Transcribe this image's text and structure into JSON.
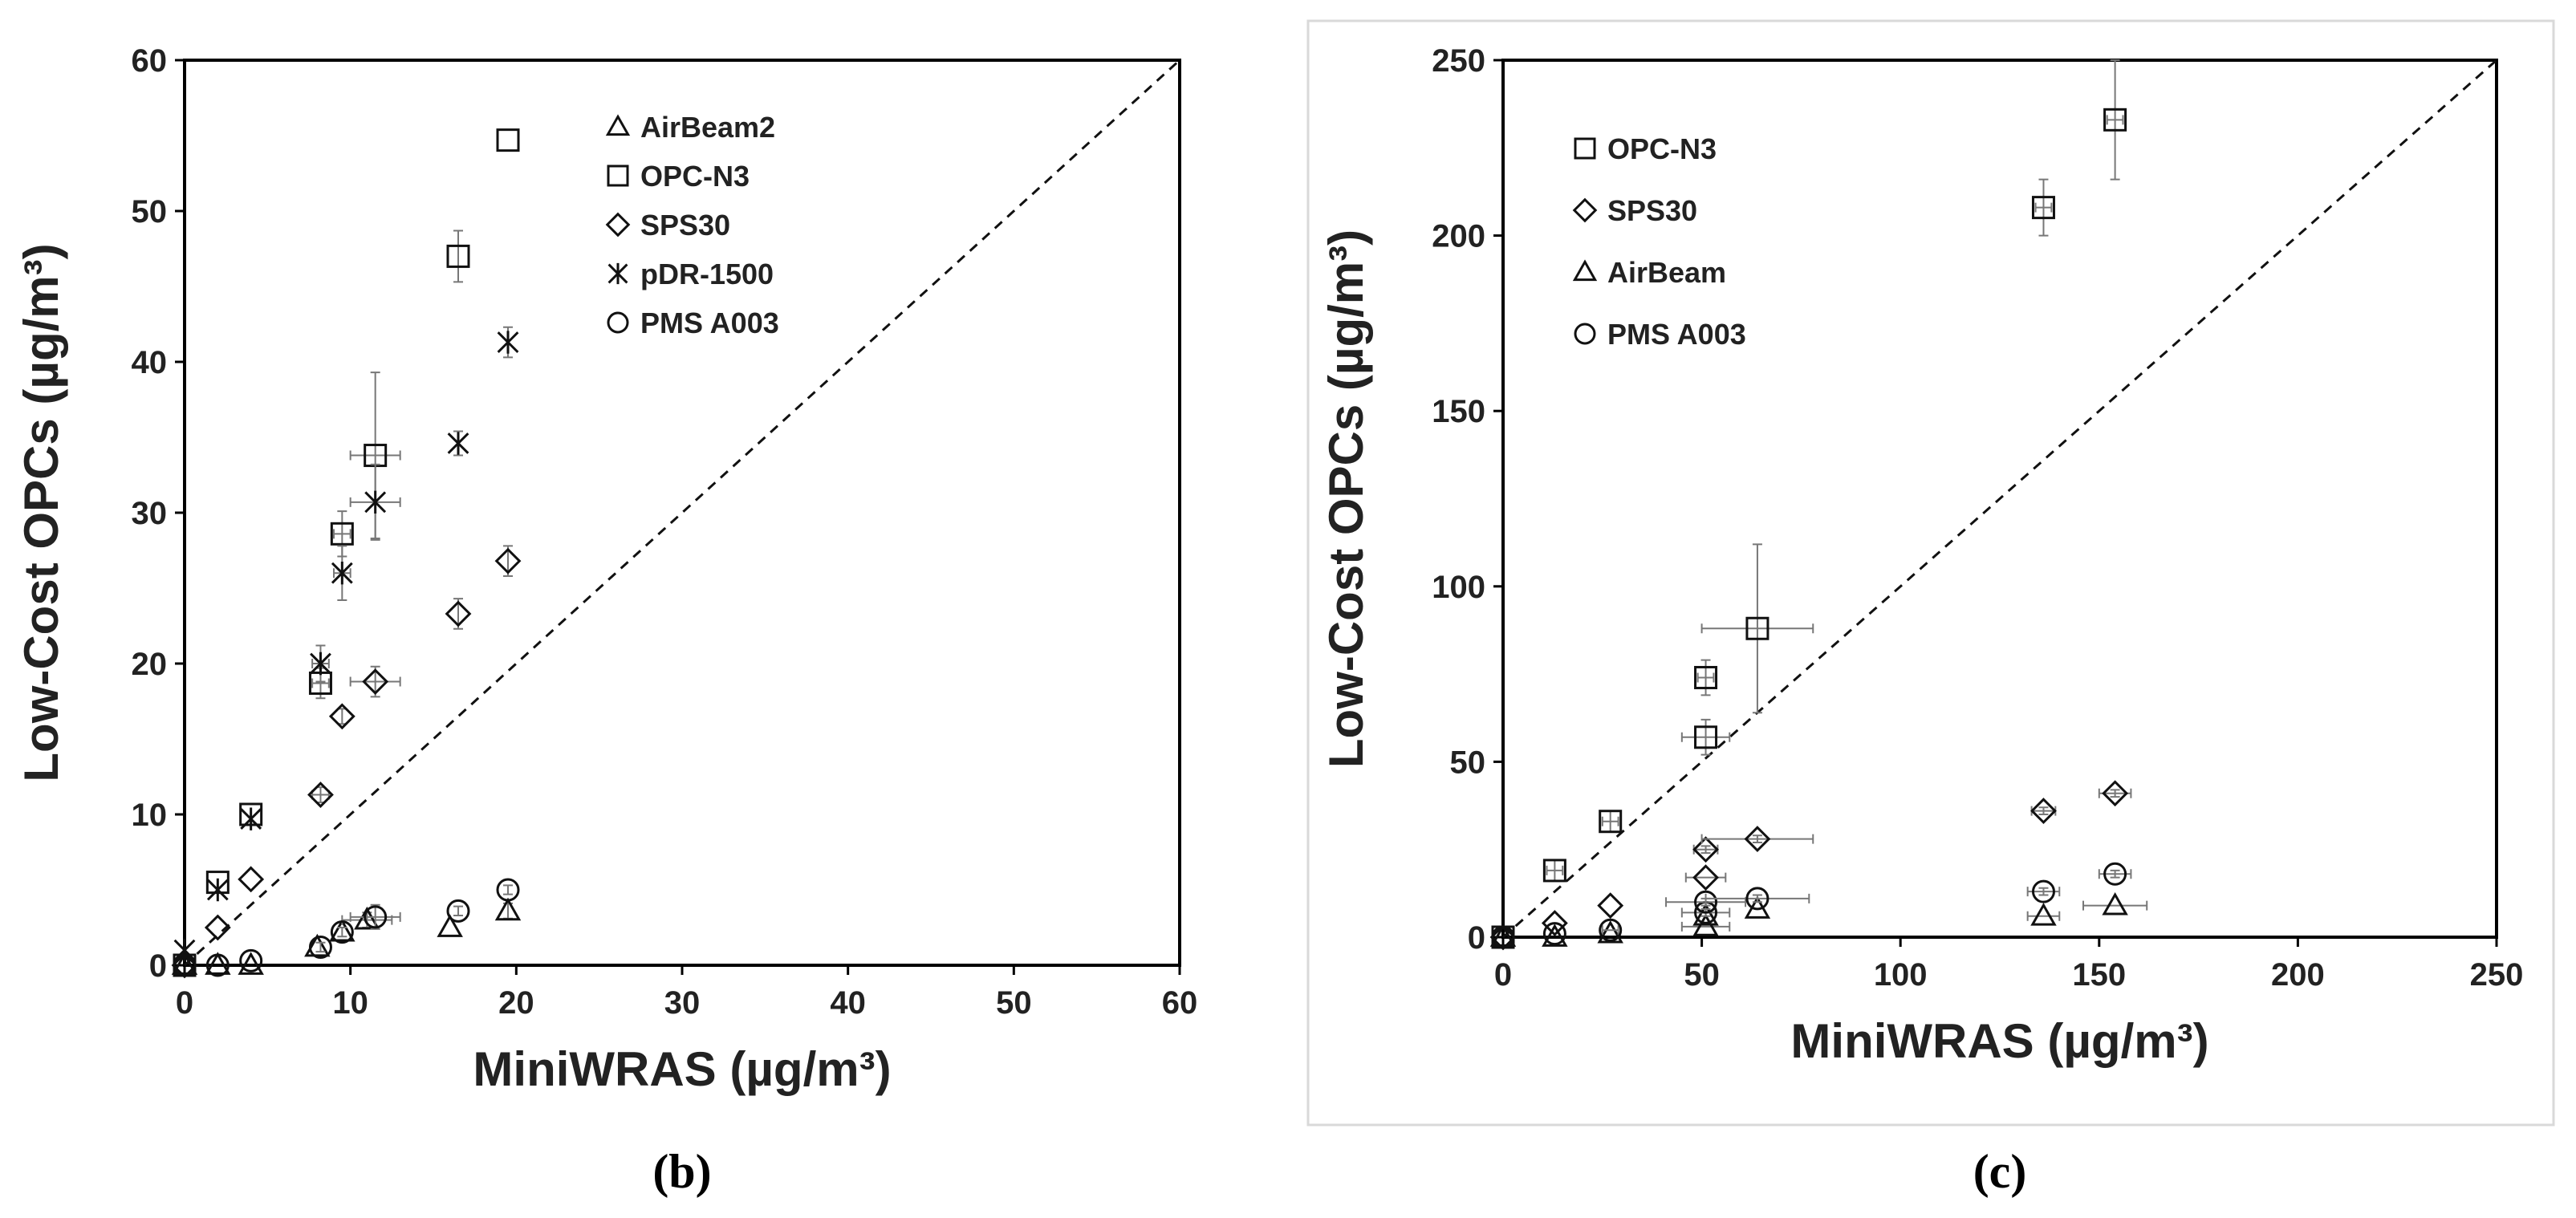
{
  "chart_data": [
    {
      "type": "scatter",
      "panel_label": "(b)",
      "xlabel": "MiniWRAS (µg/m³)",
      "ylabel": "Low-Cost OPCs (µg/m³)",
      "xlim": [
        0,
        60
      ],
      "ylim": [
        0,
        60
      ],
      "xticks": [
        "0",
        "10",
        "20",
        "30",
        "40",
        "50",
        "60"
      ],
      "yticks": [
        "0",
        "10",
        "20",
        "30",
        "40",
        "50",
        "60"
      ],
      "one_to_one_line": true,
      "legend_position": "top-right",
      "series": [
        {
          "name": "AirBeam2",
          "marker": "triangle",
          "x": [
            0,
            2,
            4,
            8,
            9.5,
            11,
            16,
            19.5
          ],
          "y": [
            0,
            0,
            0,
            1.2,
            2.2,
            3,
            2.5,
            3.6
          ],
          "xerr": [
            0,
            0,
            0,
            0,
            0,
            1.5,
            0,
            0
          ],
          "yerr": [
            0,
            0,
            0,
            0,
            0,
            0.5,
            0,
            0.5
          ]
        },
        {
          "name": "OPC-N3",
          "marker": "square",
          "x": [
            0,
            2,
            4,
            8.2,
            9.5,
            11.5,
            16.5,
            19.5
          ],
          "y": [
            0,
            5.5,
            10,
            18.7,
            28.6,
            33.8,
            47,
            54.7
          ],
          "xerr": [
            0,
            0,
            0,
            0.5,
            0.5,
            1.5,
            0,
            0
          ],
          "yerr": [
            0,
            0,
            0,
            1,
            1.5,
            5.5,
            1.7,
            0
          ]
        },
        {
          "name": "SPS30",
          "marker": "diamond",
          "x": [
            0,
            2,
            4,
            8.2,
            9.5,
            11.5,
            16.5,
            19.5
          ],
          "y": [
            0,
            2.5,
            5.7,
            11.3,
            16.5,
            18.8,
            23.3,
            26.8
          ],
          "xerr": [
            0,
            0,
            0,
            0.5,
            0,
            1.5,
            0,
            0
          ],
          "yerr": [
            0,
            0,
            0,
            0.5,
            0.5,
            1,
            1,
            1
          ]
        },
        {
          "name": "pDR-1500",
          "marker": "asterisk",
          "x": [
            0,
            2,
            4,
            8.2,
            9.5,
            11.5,
            16.5,
            19.5
          ],
          "y": [
            1,
            5,
            9.7,
            20,
            26,
            30.7,
            34.6,
            41.3
          ],
          "xerr": [
            0,
            0,
            0,
            0.5,
            0.5,
            1.5,
            0,
            0
          ],
          "yerr": [
            0,
            0,
            0,
            1.2,
            1.8,
            2.5,
            0.8,
            1
          ]
        },
        {
          "name": "PMS A003",
          "marker": "circle",
          "x": [
            0,
            2,
            4,
            8.2,
            9.5,
            11.5,
            16.5,
            19.5
          ],
          "y": [
            0,
            0,
            0.3,
            1.2,
            2.2,
            3.2,
            3.6,
            5
          ],
          "xerr": [
            0,
            0,
            0,
            0,
            0,
            1.5,
            0,
            0
          ],
          "yerr": [
            0,
            0,
            0,
            0.3,
            0.3,
            0.8,
            0.3,
            0.3
          ]
        }
      ]
    },
    {
      "type": "scatter",
      "panel_label": "(c)",
      "xlabel": "MiniWRAS (µg/m³)",
      "ylabel": "Low-Cost OPCs (µg/m³)",
      "xlim": [
        0,
        250
      ],
      "ylim": [
        0,
        250
      ],
      "xticks": [
        "0",
        "50",
        "100",
        "150",
        "200",
        "250"
      ],
      "yticks": [
        "0",
        "50",
        "100",
        "150",
        "200",
        "250"
      ],
      "one_to_one_line": true,
      "legend_position": "top-left",
      "series": [
        {
          "name": "OPC-N3",
          "marker": "square",
          "x": [
            0,
            13,
            27,
            51,
            51,
            64,
            136,
            154
          ],
          "y": [
            0,
            19,
            33,
            57,
            74,
            88,
            208,
            233
          ],
          "xerr": [
            0,
            2,
            2,
            6,
            2,
            14,
            2,
            2
          ],
          "yerr": [
            0,
            3,
            3,
            5,
            5,
            24,
            8,
            17
          ]
        },
        {
          "name": "SPS30",
          "marker": "diamond",
          "x": [
            0,
            13,
            27,
            51,
            51,
            64,
            136,
            154
          ],
          "y": [
            0,
            4,
            9,
            17,
            25,
            28,
            36,
            41
          ],
          "xerr": [
            0,
            0,
            0,
            5,
            3,
            14,
            3,
            4
          ],
          "yerr": [
            0,
            0,
            0,
            0,
            1,
            1,
            1,
            1
          ]
        },
        {
          "name": "AirBeam",
          "marker": "triangle",
          "x": [
            0,
            13,
            27,
            51,
            51,
            64,
            136,
            154
          ],
          "y": [
            0,
            0,
            1,
            3,
            6,
            8,
            6,
            9
          ],
          "xerr": [
            0,
            0,
            0,
            6,
            0,
            0,
            4,
            8
          ],
          "yerr": [
            0,
            0,
            0,
            0,
            0,
            0,
            0,
            0
          ]
        },
        {
          "name": "PMS A003",
          "marker": "circle",
          "x": [
            0,
            13,
            27,
            51,
            51,
            64,
            136,
            154
          ],
          "y": [
            0,
            1,
            2,
            7,
            10,
            11,
            13,
            18
          ],
          "xerr": [
            0,
            0,
            2,
            6,
            10,
            13,
            4,
            4
          ],
          "yerr": [
            0,
            0,
            0,
            1,
            1,
            1,
            1,
            1
          ]
        }
      ]
    }
  ]
}
